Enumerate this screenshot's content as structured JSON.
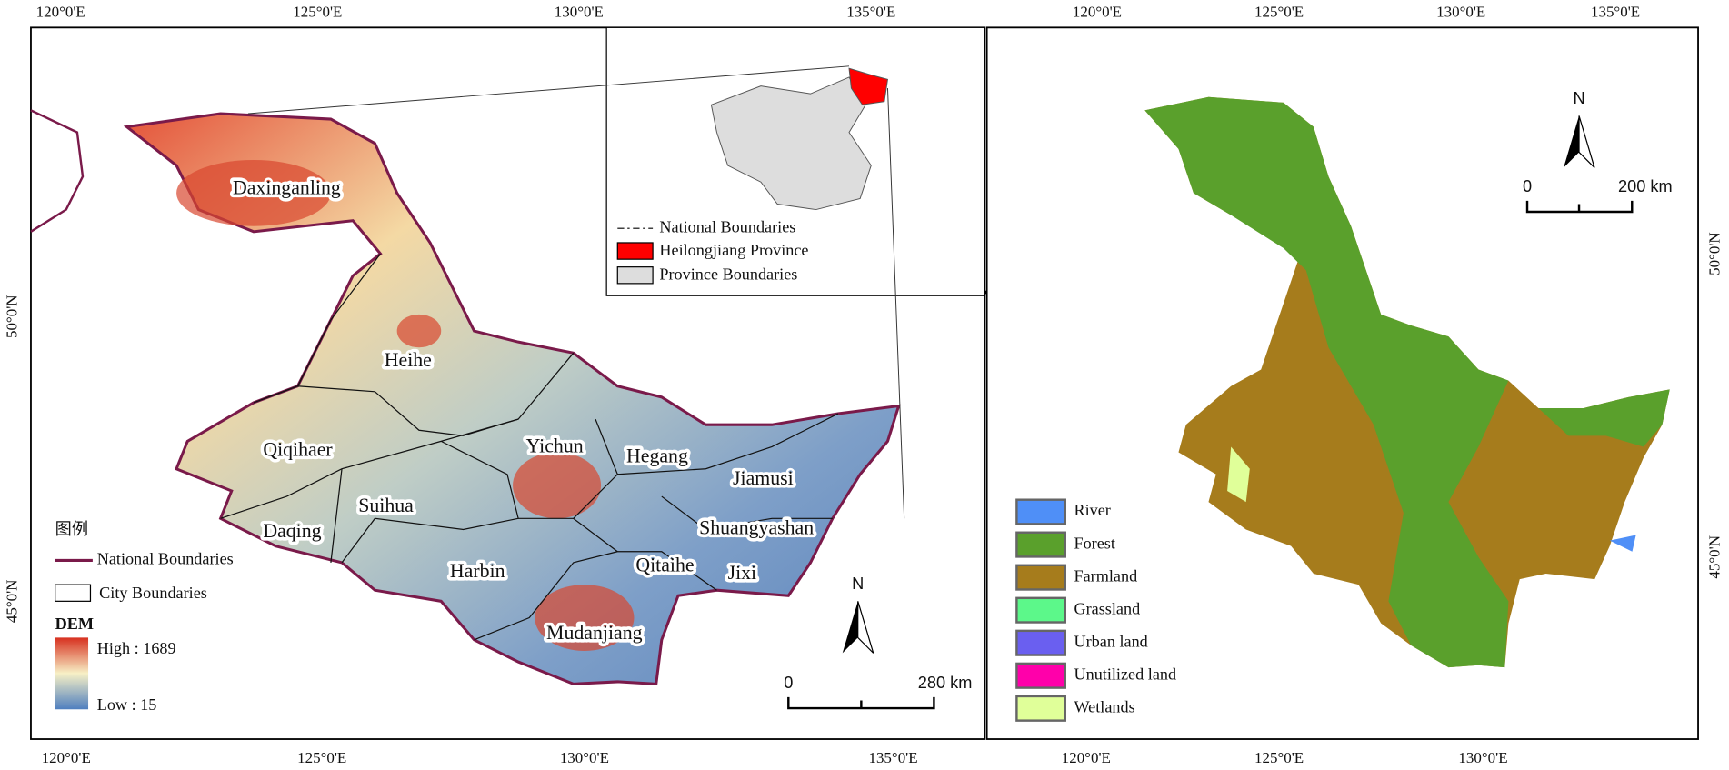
{
  "left_map": {
    "top_ticks": [
      "120°0'E",
      "125°0'E",
      "130°0'E",
      "135°0'E"
    ],
    "bottom_ticks": [
      "120°0'E",
      "125°0'E",
      "130°0'E",
      "135°0'E"
    ],
    "side_ticks": [
      "50°0'N",
      "45°0'N"
    ],
    "cities": [
      "Daxinganling",
      "Heihe",
      "Qiqihaer",
      "Yichun",
      "Hegang",
      "Jiamusi",
      "Suihua",
      "Daqing",
      "Shuangyashan",
      "Harbin",
      "Qitaihe",
      "Jixi",
      "Mudanjiang"
    ],
    "legend": {
      "title": "图例",
      "national": "National Boundaries",
      "city": "City Boundaries",
      "dem_title": "DEM",
      "high": "High : 1689",
      "low": "Low : 15"
    },
    "inset_legend": [
      "National Boundaries",
      "Heilongjiang Province",
      "Province Boundaries"
    ],
    "north": "N",
    "scale": [
      "0",
      "280 km"
    ]
  },
  "right_map": {
    "top_ticks": [
      "120°0'E",
      "125°0'E",
      "130°0'E",
      "135°0'E"
    ],
    "bottom_ticks": [
      "120°0'E",
      "125°0'E",
      "130°0'E"
    ],
    "side_ticks": [
      "50°0'N",
      "45°0'N"
    ],
    "north": "N",
    "scale": [
      "0",
      "200 km"
    ],
    "land_use": [
      {
        "name": "River",
        "color": "#4f8ff7"
      },
      {
        "name": "Forest",
        "color": "#5aa02c"
      },
      {
        "name": "Farmland",
        "color": "#a67c1c"
      },
      {
        "name": "Grassland",
        "color": "#5cf88a"
      },
      {
        "name": "Urban land",
        "color": "#6a5ff0"
      },
      {
        "name": "Unutilized land",
        "color": "#ff00aa"
      },
      {
        "name": "Wetlands",
        "color": "#e0ff99"
      }
    ]
  }
}
